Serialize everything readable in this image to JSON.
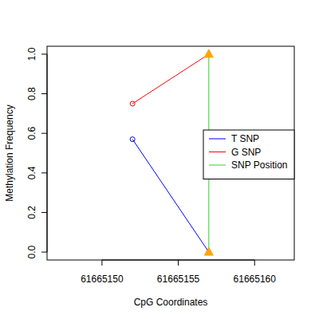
{
  "chart_data": {
    "type": "line",
    "x_label": "CpG Coordinates",
    "y_label": "Methylation Frequency",
    "xlim": [
      61665146.4,
      61665162.6
    ],
    "xticks": [
      61665150,
      61665155,
      61665160
    ],
    "ylim": [
      -0.04,
      1.04
    ],
    "yticks": [
      {
        "value": 0,
        "label": "0.0"
      },
      {
        "value": 0.2,
        "label": "0.2"
      },
      {
        "value": 0.4,
        "label": "0.4"
      },
      {
        "value": 0.6,
        "label": "0.6"
      },
      {
        "value": 0.8,
        "label": "0.8"
      },
      {
        "value": 1,
        "label": "1.0"
      }
    ],
    "legend": "right",
    "series": [
      {
        "name": "T SNP",
        "color": "#0000ff",
        "marker": "circle",
        "x": [
          61665152,
          61665157
        ],
        "values": [
          0.57,
          0.0
        ]
      },
      {
        "name": "G SNP",
        "color": "#ff0000",
        "marker": "circle",
        "x": [
          61665152,
          61665157
        ],
        "values": [
          0.75,
          1.0
        ]
      },
      {
        "name": "SNP Position",
        "color": "#33cc33",
        "marker": "triangle",
        "x": [
          61665157,
          61665157
        ],
        "values": [
          0.0,
          1.0
        ]
      }
    ]
  }
}
